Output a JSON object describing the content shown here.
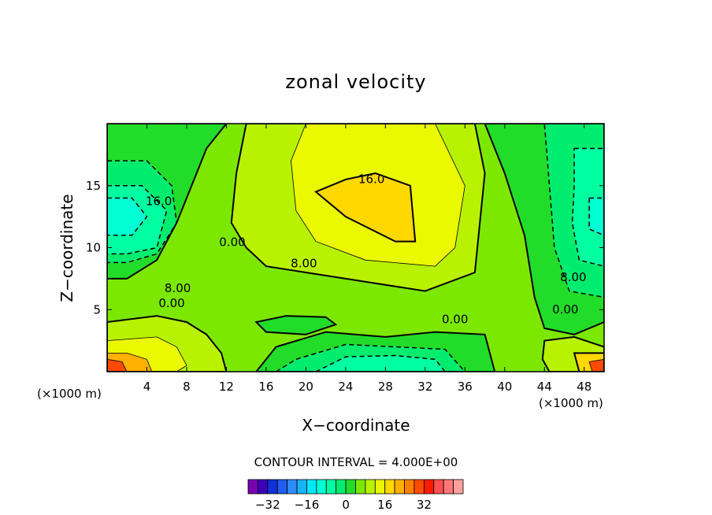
{
  "chart_data": {
    "type": "heatmap",
    "title": "zonal velocity",
    "xlabel": "X−coordinate",
    "ylabel": "Z−coordinate",
    "x_unit_left": "(×1000 m)",
    "x_unit_right": "(×1000 m)",
    "xlim": [
      0,
      50
    ],
    "ylim": [
      0,
      20
    ],
    "x_ticks": [
      4,
      8,
      12,
      16,
      20,
      24,
      28,
      32,
      36,
      40,
      44,
      48
    ],
    "y_ticks": [
      5,
      10,
      15
    ],
    "contour_interval_text": "CONTOUR INTERVAL = 4.000E+00",
    "contour_interval": 4,
    "colorbar": {
      "ticks": [
        -32,
        -16,
        0,
        16,
        32
      ],
      "tick_labels": [
        "−32",
        "−16",
        "0",
        "16",
        "32"
      ],
      "colors": [
        "#7a00b0",
        "#3b00b8",
        "#1030d8",
        "#1f5ef0",
        "#2f8cf5",
        "#18b4f5",
        "#00e8ff",
        "#00ffd2",
        "#00ffa0",
        "#00ec6e",
        "#22dc2a",
        "#7ce800",
        "#b8f200",
        "#eaf800",
        "#ffd800",
        "#ffb000",
        "#ff8000",
        "#ff4a00",
        "#ff1a00",
        "#ff5050",
        "#ff7878",
        "#ffa0a0"
      ]
    },
    "contour_labels": [
      {
        "text": "16.0",
        "x": 26.6,
        "y": 15.5
      },
      {
        "text": "16.0",
        "x": 5.2,
        "y": 13.7
      },
      {
        "text": "0.00",
        "x": 12.6,
        "y": 10.4
      },
      {
        "text": "8.00",
        "x": 19.8,
        "y": 8.7
      },
      {
        "text": "8.00",
        "x": 7.1,
        "y": 6.7
      },
      {
        "text": "0.00",
        "x": 6.5,
        "y": 5.5
      },
      {
        "text": "0.00",
        "x": 35.0,
        "y": 4.2
      },
      {
        "text": "8.00",
        "x": 46.9,
        "y": 7.6
      },
      {
        "text": "0.00",
        "x": 46.1,
        "y": 5.0
      }
    ],
    "fields": [
      {
        "value": 4,
        "points": [
          [
            0,
            0
          ],
          [
            50,
            0
          ],
          [
            50,
            20
          ],
          [
            0,
            20
          ]
        ]
      },
      {
        "value": 0,
        "points": [
          [
            0,
            20
          ],
          [
            12,
            20
          ],
          [
            10,
            18
          ],
          [
            8.5,
            15
          ],
          [
            7,
            12
          ],
          [
            5,
            9
          ],
          [
            2,
            7.5
          ],
          [
            0,
            7.5
          ]
        ]
      },
      {
        "value": -4,
        "points": [
          [
            0,
            17
          ],
          [
            4,
            17
          ],
          [
            6.5,
            15
          ],
          [
            7,
            12
          ],
          [
            5,
            9.5
          ],
          [
            2,
            8.8
          ],
          [
            0,
            8.8
          ]
        ]
      },
      {
        "value": -8,
        "points": [
          [
            0,
            15
          ],
          [
            3.5,
            15
          ],
          [
            6,
            13
          ],
          [
            5,
            10
          ],
          [
            2,
            9.5
          ],
          [
            0,
            9.5
          ]
        ]
      },
      {
        "value": -12,
        "points": [
          [
            0,
            14
          ],
          [
            2.5,
            14
          ],
          [
            4,
            12.5
          ],
          [
            2.5,
            11
          ],
          [
            0,
            11
          ]
        ]
      },
      {
        "value": 0,
        "points": [
          [
            38,
            20
          ],
          [
            50,
            20
          ],
          [
            50,
            4
          ],
          [
            47,
            3
          ],
          [
            44,
            3.5
          ],
          [
            43,
            6
          ],
          [
            42,
            11
          ],
          [
            40,
            16
          ]
        ]
      },
      {
        "value": -4,
        "points": [
          [
            44,
            20
          ],
          [
            50,
            20
          ],
          [
            50,
            6
          ],
          [
            46.5,
            6.5
          ],
          [
            45,
            10
          ],
          [
            44.5,
            15
          ]
        ]
      },
      {
        "value": -8,
        "points": [
          [
            47,
            18
          ],
          [
            50,
            18
          ],
          [
            50,
            8.5
          ],
          [
            47.5,
            9
          ],
          [
            46.8,
            12
          ],
          [
            47,
            15
          ]
        ]
      },
      {
        "value": -12,
        "points": [
          [
            48.5,
            14
          ],
          [
            50,
            14
          ],
          [
            50,
            11
          ],
          [
            48.5,
            11.5
          ]
        ]
      },
      {
        "value": 8,
        "points": [
          [
            14,
            20
          ],
          [
            37,
            20
          ],
          [
            38,
            16
          ],
          [
            37,
            8
          ],
          [
            32,
            6.5
          ],
          [
            24,
            7.5
          ],
          [
            20,
            8
          ],
          [
            16,
            8.5
          ],
          [
            14,
            10
          ],
          [
            12.5,
            12
          ],
          [
            13,
            16
          ]
        ]
      },
      {
        "value": 12,
        "points": [
          [
            20,
            20
          ],
          [
            33,
            20
          ],
          [
            36,
            15
          ],
          [
            35,
            10
          ],
          [
            33,
            8.5
          ],
          [
            26,
            9
          ],
          [
            21,
            10.5
          ],
          [
            19,
            13
          ],
          [
            18.5,
            17
          ]
        ]
      },
      {
        "value": 16,
        "points": [
          [
            24,
            15.5
          ],
          [
            27,
            16
          ],
          [
            30.5,
            15
          ],
          [
            31,
            10.5
          ],
          [
            29,
            10.5
          ],
          [
            24,
            12.5
          ],
          [
            21,
            14.5
          ]
        ]
      },
      {
        "value": 8,
        "points": [
          [
            0,
            4
          ],
          [
            5,
            4.5
          ],
          [
            8,
            4
          ],
          [
            10,
            3
          ],
          [
            11.5,
            1.5
          ],
          [
            12,
            0
          ],
          [
            0,
            0
          ]
        ]
      },
      {
        "value": 12,
        "points": [
          [
            0,
            2.5
          ],
          [
            5,
            2.8
          ],
          [
            7,
            2
          ],
          [
            8,
            0.5
          ],
          [
            7,
            0
          ],
          [
            0,
            0
          ]
        ]
      },
      {
        "value": 20,
        "points": [
          [
            0,
            1.5
          ],
          [
            2,
            1.5
          ],
          [
            4,
            1
          ],
          [
            4.5,
            0
          ],
          [
            0,
            0
          ]
        ]
      },
      {
        "value": 28,
        "points": [
          [
            0,
            1
          ],
          [
            1.5,
            0.8
          ],
          [
            2,
            0
          ],
          [
            0,
            0
          ]
        ]
      },
      {
        "value": 8,
        "points": [
          [
            44,
            2.5
          ],
          [
            47,
            2.8
          ],
          [
            50,
            2
          ],
          [
            50,
            0
          ],
          [
            44.5,
            0
          ],
          [
            43.8,
            1
          ]
        ]
      },
      {
        "value": 16,
        "points": [
          [
            47,
            1.5
          ],
          [
            50,
            1.5
          ],
          [
            50,
            0
          ],
          [
            47.5,
            0
          ]
        ]
      },
      {
        "value": 28,
        "points": [
          [
            48.5,
            0.8
          ],
          [
            50,
            1
          ],
          [
            50,
            0
          ],
          [
            48.8,
            0
          ]
        ]
      },
      {
        "value": 0,
        "points": [
          [
            15,
            0
          ],
          [
            17,
            2
          ],
          [
            22,
            3.2
          ],
          [
            28,
            2.8
          ],
          [
            33,
            3.2
          ],
          [
            38,
            3
          ],
          [
            39,
            0
          ]
        ]
      },
      {
        "value": -4,
        "points": [
          [
            17,
            0
          ],
          [
            19,
            1
          ],
          [
            24,
            2.2
          ],
          [
            29,
            2
          ],
          [
            34,
            1.8
          ],
          [
            36,
            0
          ]
        ]
      },
      {
        "value": -8,
        "points": [
          [
            21,
            0
          ],
          [
            24,
            1.2
          ],
          [
            29,
            1.3
          ],
          [
            33,
            1
          ],
          [
            34,
            0
          ]
        ]
      },
      {
        "value": 0,
        "points": [
          [
            15,
            4
          ],
          [
            18,
            4.5
          ],
          [
            22,
            4.4
          ],
          [
            23,
            3.8
          ],
          [
            20,
            3
          ],
          [
            16,
            3.2
          ]
        ]
      }
    ]
  }
}
